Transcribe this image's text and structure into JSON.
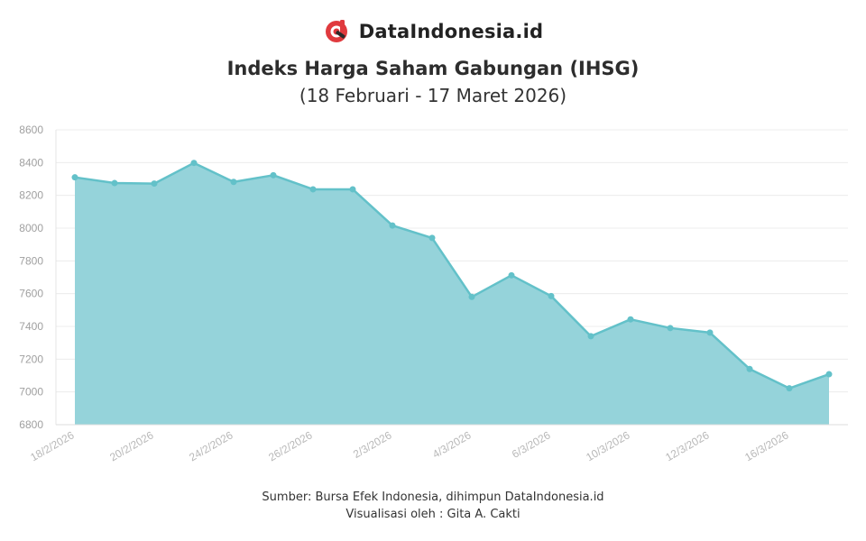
{
  "brand": {
    "name": "DataIndonesia.id",
    "logo_icon": "dataindonesia-logo-icon",
    "logo_color": "#e03a3e"
  },
  "chart_data": {
    "type": "area",
    "title": "Indeks Harga Saham Gabungan (IHSG)",
    "subtitle": "(18 Februari - 17 Maret 2026)",
    "xlabel": "",
    "ylabel": "",
    "ylim": [
      6800,
      8600
    ],
    "yticks": [
      6800,
      7000,
      7200,
      7400,
      7600,
      7800,
      8000,
      8200,
      8400,
      8600
    ],
    "x_tick_labels": [
      "18/2/2026",
      "20/2/2026",
      "24/2/2026",
      "26/2/2026",
      "2/3/2026",
      "4/3/2026",
      "6/3/2026",
      "10/3/2026",
      "12/3/2026",
      "16/3/2026"
    ],
    "grid": true,
    "color": "#63c1c9",
    "fill_color": "#95d3da",
    "series": [
      {
        "values": [
          8310,
          8275,
          8272,
          8398,
          8282,
          8323,
          8237,
          8237,
          8016,
          7940,
          7580,
          7712,
          7585,
          7340,
          7443,
          7390,
          7362,
          7140,
          7022,
          7108
        ]
      }
    ]
  },
  "footer": {
    "source": "Sumber: Bursa Efek Indonesia, dihimpun DataIndonesia.id",
    "credit": "Visualisasi oleh : Gita A. Cakti"
  }
}
